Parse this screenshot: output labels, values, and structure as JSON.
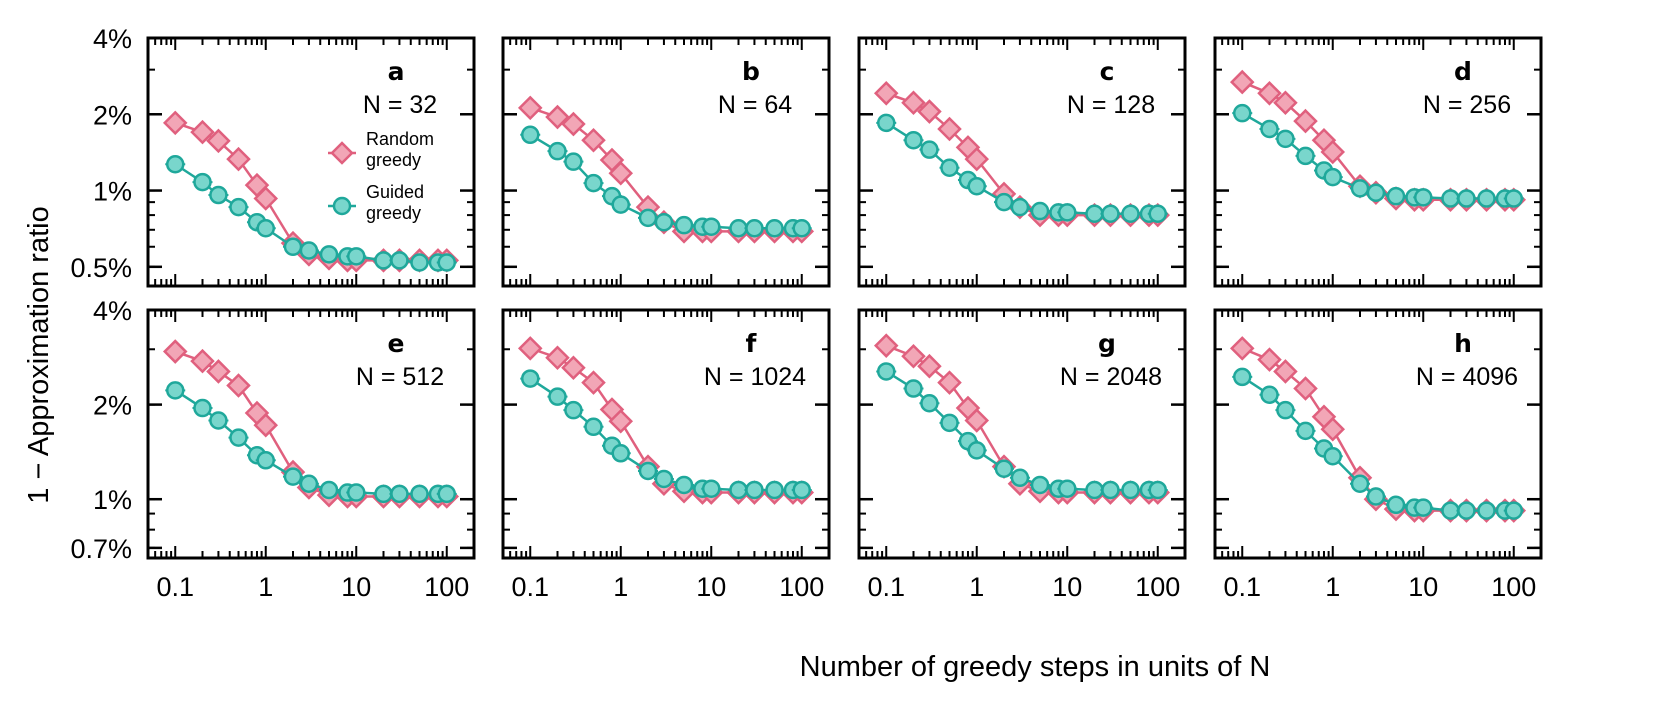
{
  "colors": {
    "random": "#e0607e",
    "random_fill": "#f2a6b6",
    "guided": "#1fa89b",
    "guided_fill": "#79d6cc"
  },
  "shared": {
    "xlabel": "Number of greedy steps in units of N",
    "ylabel": "1 −  Approximation ratio",
    "x_tick_labels": [
      "0.1",
      "1",
      "10",
      "100"
    ],
    "top_row_y_ticks": [
      "4%",
      "2%",
      "1%",
      "0.5%"
    ],
    "bottom_row_y_ticks": [
      "4%",
      "2%",
      "1%",
      "0.7%"
    ],
    "legend": {
      "random": "Random\ngreedy",
      "guided": "Guided\ngreedy",
      "placement": "panel a, center-right"
    }
  },
  "chart_data": [
    {
      "type": "line",
      "panel": "a",
      "annotation": "N = 32",
      "x": [
        0.1,
        0.2,
        0.3,
        0.5,
        0.8,
        1,
        2,
        3,
        5,
        8,
        10,
        20,
        30,
        50,
        80,
        100
      ],
      "ylim": [
        0.42,
        4.0
      ],
      "yscale": "log",
      "xscale": "log",
      "series": [
        {
          "name": "Random greedy",
          "values": [
            1.85,
            1.7,
            1.57,
            1.33,
            1.05,
            0.93,
            0.62,
            0.56,
            0.54,
            0.53,
            0.53,
            0.53,
            0.53,
            0.53,
            0.53,
            0.53
          ]
        },
        {
          "name": "Guided greedy",
          "values": [
            1.27,
            1.08,
            0.96,
            0.86,
            0.75,
            0.71,
            0.6,
            0.58,
            0.56,
            0.55,
            0.55,
            0.53,
            0.53,
            0.52,
            0.52,
            0.52
          ]
        }
      ]
    },
    {
      "type": "line",
      "panel": "b",
      "annotation": "N = 64",
      "x": [
        0.1,
        0.2,
        0.3,
        0.5,
        0.8,
        1,
        2,
        3,
        5,
        8,
        10,
        20,
        30,
        50,
        80,
        100
      ],
      "ylim": [
        0.42,
        4.0
      ],
      "yscale": "log",
      "xscale": "log",
      "series": [
        {
          "name": "Random greedy",
          "values": [
            2.12,
            1.95,
            1.83,
            1.58,
            1.32,
            1.17,
            0.86,
            0.75,
            0.69,
            0.69,
            0.69,
            0.69,
            0.69,
            0.69,
            0.69,
            0.69
          ]
        },
        {
          "name": "Guided greedy",
          "values": [
            1.66,
            1.43,
            1.3,
            1.07,
            0.95,
            0.88,
            0.78,
            0.75,
            0.73,
            0.72,
            0.72,
            0.71,
            0.71,
            0.71,
            0.71,
            0.71
          ]
        }
      ]
    },
    {
      "type": "line",
      "panel": "c",
      "annotation": "N = 128",
      "x": [
        0.1,
        0.2,
        0.3,
        0.5,
        0.8,
        1,
        2,
        3,
        5,
        8,
        10,
        20,
        30,
        50,
        80,
        100
      ],
      "ylim": [
        0.42,
        4.0
      ],
      "yscale": "log",
      "xscale": "log",
      "series": [
        {
          "name": "Random greedy",
          "values": [
            2.42,
            2.22,
            2.05,
            1.75,
            1.48,
            1.33,
            0.97,
            0.86,
            0.8,
            0.8,
            0.8,
            0.8,
            0.8,
            0.8,
            0.8,
            0.8
          ]
        },
        {
          "name": "Guided greedy",
          "values": [
            1.85,
            1.58,
            1.45,
            1.23,
            1.1,
            1.04,
            0.9,
            0.86,
            0.83,
            0.82,
            0.82,
            0.81,
            0.81,
            0.81,
            0.81,
            0.81
          ]
        }
      ]
    },
    {
      "type": "line",
      "panel": "d",
      "annotation": "N = 256",
      "x": [
        0.1,
        0.2,
        0.3,
        0.5,
        0.8,
        1,
        2,
        3,
        5,
        8,
        10,
        20,
        30,
        50,
        80,
        100
      ],
      "ylim": [
        0.42,
        4.0
      ],
      "yscale": "log",
      "xscale": "log",
      "series": [
        {
          "name": "Random greedy",
          "values": [
            2.68,
            2.42,
            2.22,
            1.88,
            1.58,
            1.42,
            1.04,
            0.98,
            0.93,
            0.92,
            0.92,
            0.92,
            0.92,
            0.92,
            0.92,
            0.92
          ]
        },
        {
          "name": "Guided greedy",
          "values": [
            2.02,
            1.75,
            1.6,
            1.37,
            1.2,
            1.13,
            1.02,
            0.98,
            0.95,
            0.94,
            0.94,
            0.93,
            0.93,
            0.93,
            0.93,
            0.93
          ]
        }
      ]
    },
    {
      "type": "line",
      "panel": "e",
      "annotation": "N = 512",
      "x": [
        0.1,
        0.2,
        0.3,
        0.5,
        0.8,
        1,
        2,
        3,
        5,
        8,
        10,
        20,
        30,
        50,
        80,
        100
      ],
      "ylim": [
        0.65,
        4.0
      ],
      "yscale": "log",
      "xscale": "log",
      "series": [
        {
          "name": "Random greedy",
          "values": [
            2.95,
            2.75,
            2.55,
            2.3,
            1.88,
            1.72,
            1.22,
            1.09,
            1.03,
            1.02,
            1.02,
            1.02,
            1.02,
            1.02,
            1.02,
            1.02
          ]
        },
        {
          "name": "Guided greedy",
          "values": [
            2.22,
            1.95,
            1.78,
            1.57,
            1.38,
            1.33,
            1.18,
            1.12,
            1.07,
            1.05,
            1.05,
            1.04,
            1.04,
            1.04,
            1.04,
            1.04
          ]
        }
      ]
    },
    {
      "type": "line",
      "panel": "f",
      "annotation": "N = 1024",
      "x": [
        0.1,
        0.2,
        0.3,
        0.5,
        0.8,
        1,
        2,
        3,
        5,
        8,
        10,
        20,
        30,
        50,
        80,
        100
      ],
      "ylim": [
        0.65,
        4.0
      ],
      "yscale": "log",
      "xscale": "log",
      "series": [
        {
          "name": "Random greedy",
          "values": [
            3.02,
            2.82,
            2.62,
            2.35,
            1.93,
            1.77,
            1.27,
            1.12,
            1.06,
            1.05,
            1.05,
            1.05,
            1.05,
            1.05,
            1.05,
            1.05
          ]
        },
        {
          "name": "Guided greedy",
          "values": [
            2.42,
            2.12,
            1.92,
            1.7,
            1.48,
            1.4,
            1.23,
            1.16,
            1.11,
            1.08,
            1.08,
            1.07,
            1.07,
            1.07,
            1.07,
            1.07
          ]
        }
      ]
    },
    {
      "type": "line",
      "panel": "g",
      "annotation": "N = 2048",
      "x": [
        0.1,
        0.2,
        0.3,
        0.5,
        0.8,
        1,
        2,
        3,
        5,
        8,
        10,
        20,
        30,
        50,
        80,
        100
      ],
      "ylim": [
        0.65,
        4.0
      ],
      "yscale": "log",
      "xscale": "log",
      "series": [
        {
          "name": "Random greedy",
          "values": [
            3.08,
            2.85,
            2.65,
            2.35,
            1.95,
            1.78,
            1.27,
            1.12,
            1.06,
            1.05,
            1.05,
            1.05,
            1.05,
            1.05,
            1.05,
            1.05
          ]
        },
        {
          "name": "Guided greedy",
          "values": [
            2.55,
            2.25,
            2.02,
            1.75,
            1.53,
            1.43,
            1.25,
            1.17,
            1.11,
            1.08,
            1.08,
            1.07,
            1.07,
            1.07,
            1.07,
            1.07
          ]
        }
      ]
    },
    {
      "type": "line",
      "panel": "h",
      "annotation": "N = 4096",
      "x": [
        0.1,
        0.2,
        0.3,
        0.5,
        0.8,
        1,
        2,
        3,
        5,
        8,
        10,
        20,
        30,
        50,
        80,
        100
      ],
      "ylim": [
        0.65,
        4.0
      ],
      "yscale": "log",
      "xscale": "log",
      "series": [
        {
          "name": "Random greedy",
          "values": [
            3.02,
            2.78,
            2.55,
            2.25,
            1.83,
            1.67,
            1.17,
            1.0,
            0.93,
            0.92,
            0.92,
            0.92,
            0.92,
            0.92,
            0.92,
            0.92
          ]
        },
        {
          "name": "Guided greedy",
          "values": [
            2.45,
            2.15,
            1.92,
            1.65,
            1.45,
            1.37,
            1.12,
            1.02,
            0.96,
            0.94,
            0.94,
            0.92,
            0.92,
            0.92,
            0.92,
            0.92
          ]
        }
      ]
    }
  ]
}
